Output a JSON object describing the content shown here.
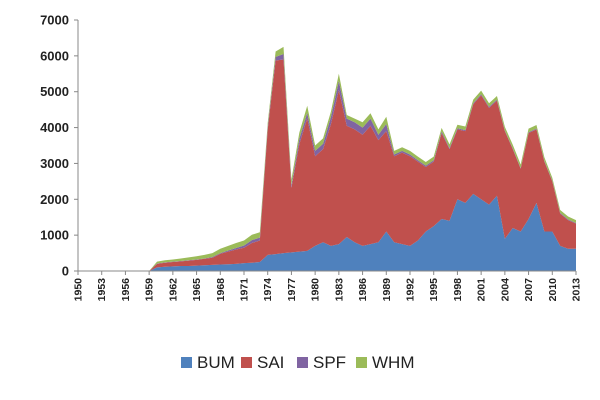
{
  "chart_data": {
    "type": "area",
    "stacked": true,
    "title": "",
    "xlabel": "",
    "ylabel": "",
    "ylim": [
      0,
      7000
    ],
    "yticks": [
      0,
      1000,
      2000,
      3000,
      4000,
      5000,
      6000,
      7000
    ],
    "xlim": [
      1950,
      2013
    ],
    "xticks": [
      1950,
      1953,
      1956,
      1959,
      1962,
      1965,
      1968,
      1971,
      1974,
      1977,
      1980,
      1983,
      1986,
      1989,
      1992,
      1995,
      1998,
      2001,
      2004,
      2007,
      2010,
      2013
    ],
    "grid": false,
    "legend_position": "bottom",
    "x": [
      1950,
      1951,
      1952,
      1953,
      1954,
      1955,
      1956,
      1957,
      1958,
      1959,
      1960,
      1961,
      1962,
      1963,
      1964,
      1965,
      1966,
      1967,
      1968,
      1969,
      1970,
      1971,
      1972,
      1973,
      1974,
      1975,
      1976,
      1977,
      1978,
      1979,
      1980,
      1981,
      1982,
      1983,
      1984,
      1985,
      1986,
      1987,
      1988,
      1989,
      1990,
      1991,
      1992,
      1993,
      1994,
      1995,
      1996,
      1997,
      1998,
      1999,
      2000,
      2001,
      2002,
      2003,
      2004,
      2005,
      2006,
      2007,
      2008,
      2009,
      2010,
      2011,
      2012,
      2013
    ],
    "series": [
      {
        "name": "BUM",
        "color": "#4f81bd",
        "values": [
          0,
          0,
          0,
          0,
          0,
          0,
          0,
          0,
          0,
          0,
          100,
          120,
          130,
          140,
          140,
          150,
          160,
          170,
          180,
          190,
          200,
          220,
          230,
          250,
          450,
          470,
          500,
          520,
          540,
          560,
          700,
          800,
          700,
          750,
          950,
          800,
          700,
          750,
          800,
          1100,
          800,
          750,
          700,
          850,
          1100,
          1250,
          1450,
          1400,
          2000,
          1900,
          2150,
          2000,
          1850,
          2100,
          900,
          1200,
          1100,
          1450,
          1900,
          1100,
          1100,
          700,
          620,
          620
        ]
      },
      {
        "name": "SAI",
        "color": "#c0504d",
        "values": [
          0,
          0,
          0,
          0,
          0,
          0,
          0,
          0,
          0,
          0,
          100,
          110,
          120,
          130,
          150,
          160,
          180,
          200,
          300,
          350,
          400,
          430,
          550,
          600,
          3500,
          5400,
          5400,
          1800,
          3000,
          3700,
          2500,
          2600,
          3400,
          4300,
          3100,
          3150,
          3100,
          3300,
          2850,
          2800,
          2400,
          2550,
          2500,
          2200,
          1800,
          1800,
          2400,
          2000,
          1950,
          2000,
          2500,
          2900,
          2700,
          2650,
          3000,
          2200,
          1750,
          2400,
          2050,
          1950,
          1400,
          900,
          800,
          700
        ]
      },
      {
        "name": "SPF",
        "color": "#8064a2",
        "values": [
          0,
          0,
          0,
          0,
          0,
          0,
          0,
          0,
          0,
          0,
          10,
          10,
          10,
          10,
          10,
          10,
          10,
          20,
          20,
          30,
          40,
          60,
          80,
          80,
          80,
          100,
          150,
          80,
          150,
          150,
          150,
          150,
          200,
          250,
          200,
          200,
          200,
          200,
          150,
          200,
          50,
          50,
          50,
          40,
          40,
          40,
          40,
          30,
          30,
          30,
          30,
          30,
          30,
          30,
          20,
          20,
          20,
          20,
          20,
          20,
          20,
          20,
          20,
          20
        ]
      },
      {
        "name": "WHM",
        "color": "#9bbb59",
        "values": [
          0,
          0,
          0,
          0,
          0,
          0,
          0,
          0,
          0,
          0,
          50,
          60,
          60,
          70,
          80,
          90,
          100,
          110,
          120,
          130,
          140,
          140,
          150,
          150,
          100,
          150,
          200,
          150,
          170,
          200,
          150,
          150,
          150,
          200,
          100,
          100,
          150,
          150,
          150,
          200,
          100,
          100,
          100,
          100,
          100,
          100,
          100,
          100,
          100,
          100,
          100,
          100,
          100,
          100,
          100,
          100,
          100,
          100,
          100,
          100,
          80,
          80,
          80,
          80
        ]
      }
    ]
  }
}
